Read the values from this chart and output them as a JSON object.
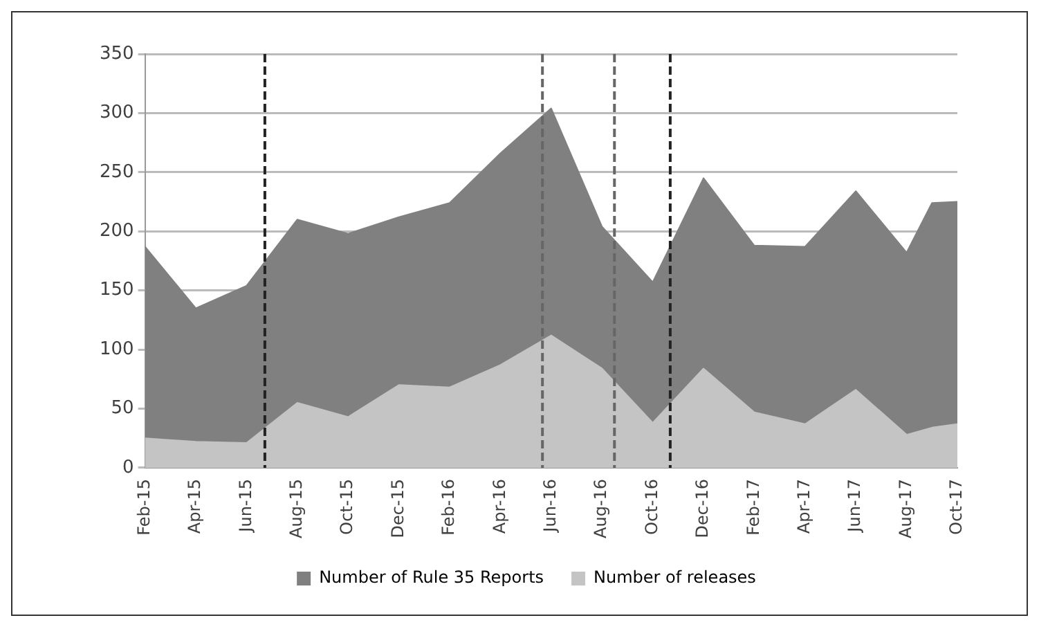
{
  "chart_data": {
    "type": "area",
    "x": [
      "2015-02",
      "2015-04",
      "2015-06",
      "2015-08",
      "2015-10",
      "2015-12",
      "2016-02",
      "2016-04",
      "2016-06",
      "2016-08",
      "2016-10",
      "2016-12",
      "2017-02",
      "2017-04",
      "2017-06",
      "2017-08",
      "2017-09",
      "2017-10"
    ],
    "series": [
      {
        "name": "Number of Rule 35 Reports",
        "color": "#808080",
        "values": [
          187,
          135,
          154,
          210,
          198,
          212,
          224,
          266,
          304,
          204,
          157,
          245,
          188,
          187,
          234,
          182,
          224,
          225
        ]
      },
      {
        "name": "Number of releases",
        "color": "#c4c4c4",
        "values": [
          25,
          22,
          21,
          55,
          43,
          70,
          68,
          87,
          112,
          84,
          38,
          84,
          47,
          37,
          66,
          28,
          34,
          37
        ]
      }
    ],
    "xlim": [
      "2015-02",
      "2017-10"
    ],
    "xticks": [
      {
        "value": "2015-02",
        "label": "Feb-15"
      },
      {
        "value": "2015-04",
        "label": "Apr-15"
      },
      {
        "value": "2015-06",
        "label": "Jun-15"
      },
      {
        "value": "2015-08",
        "label": "Aug-15"
      },
      {
        "value": "2015-10",
        "label": "Oct-15"
      },
      {
        "value": "2015-12",
        "label": "Dec-15"
      },
      {
        "value": "2016-02",
        "label": "Feb-16"
      },
      {
        "value": "2016-04",
        "label": "Apr-16"
      },
      {
        "value": "2016-06",
        "label": "Jun-16"
      },
      {
        "value": "2016-08",
        "label": "Aug-16"
      },
      {
        "value": "2016-10",
        "label": "Oct-16"
      },
      {
        "value": "2016-12",
        "label": "Dec-16"
      },
      {
        "value": "2017-02",
        "label": "Feb-17"
      },
      {
        "value": "2017-04",
        "label": "Apr-17"
      },
      {
        "value": "2017-06",
        "label": "Jun-17"
      },
      {
        "value": "2017-08",
        "label": "Aug-17"
      },
      {
        "value": "2017-10",
        "label": "Oct-17"
      }
    ],
    "ylim": [
      0,
      350
    ],
    "yticks": [
      0,
      50,
      100,
      150,
      200,
      250,
      300,
      350
    ],
    "ref_lines": [
      {
        "axis": "x",
        "value": "2015-06-23",
        "color": "#222222",
        "line_style": "dashed"
      },
      {
        "axis": "x",
        "value": "2016-05-21",
        "color": "#666666",
        "line_style": "dashed"
      },
      {
        "axis": "x",
        "value": "2016-08-16",
        "color": "#666666",
        "line_style": "dashed"
      },
      {
        "axis": "x",
        "value": "2016-10-22",
        "color": "#222222",
        "line_style": "dashed"
      }
    ],
    "grid": "y",
    "legend": "bottom"
  }
}
